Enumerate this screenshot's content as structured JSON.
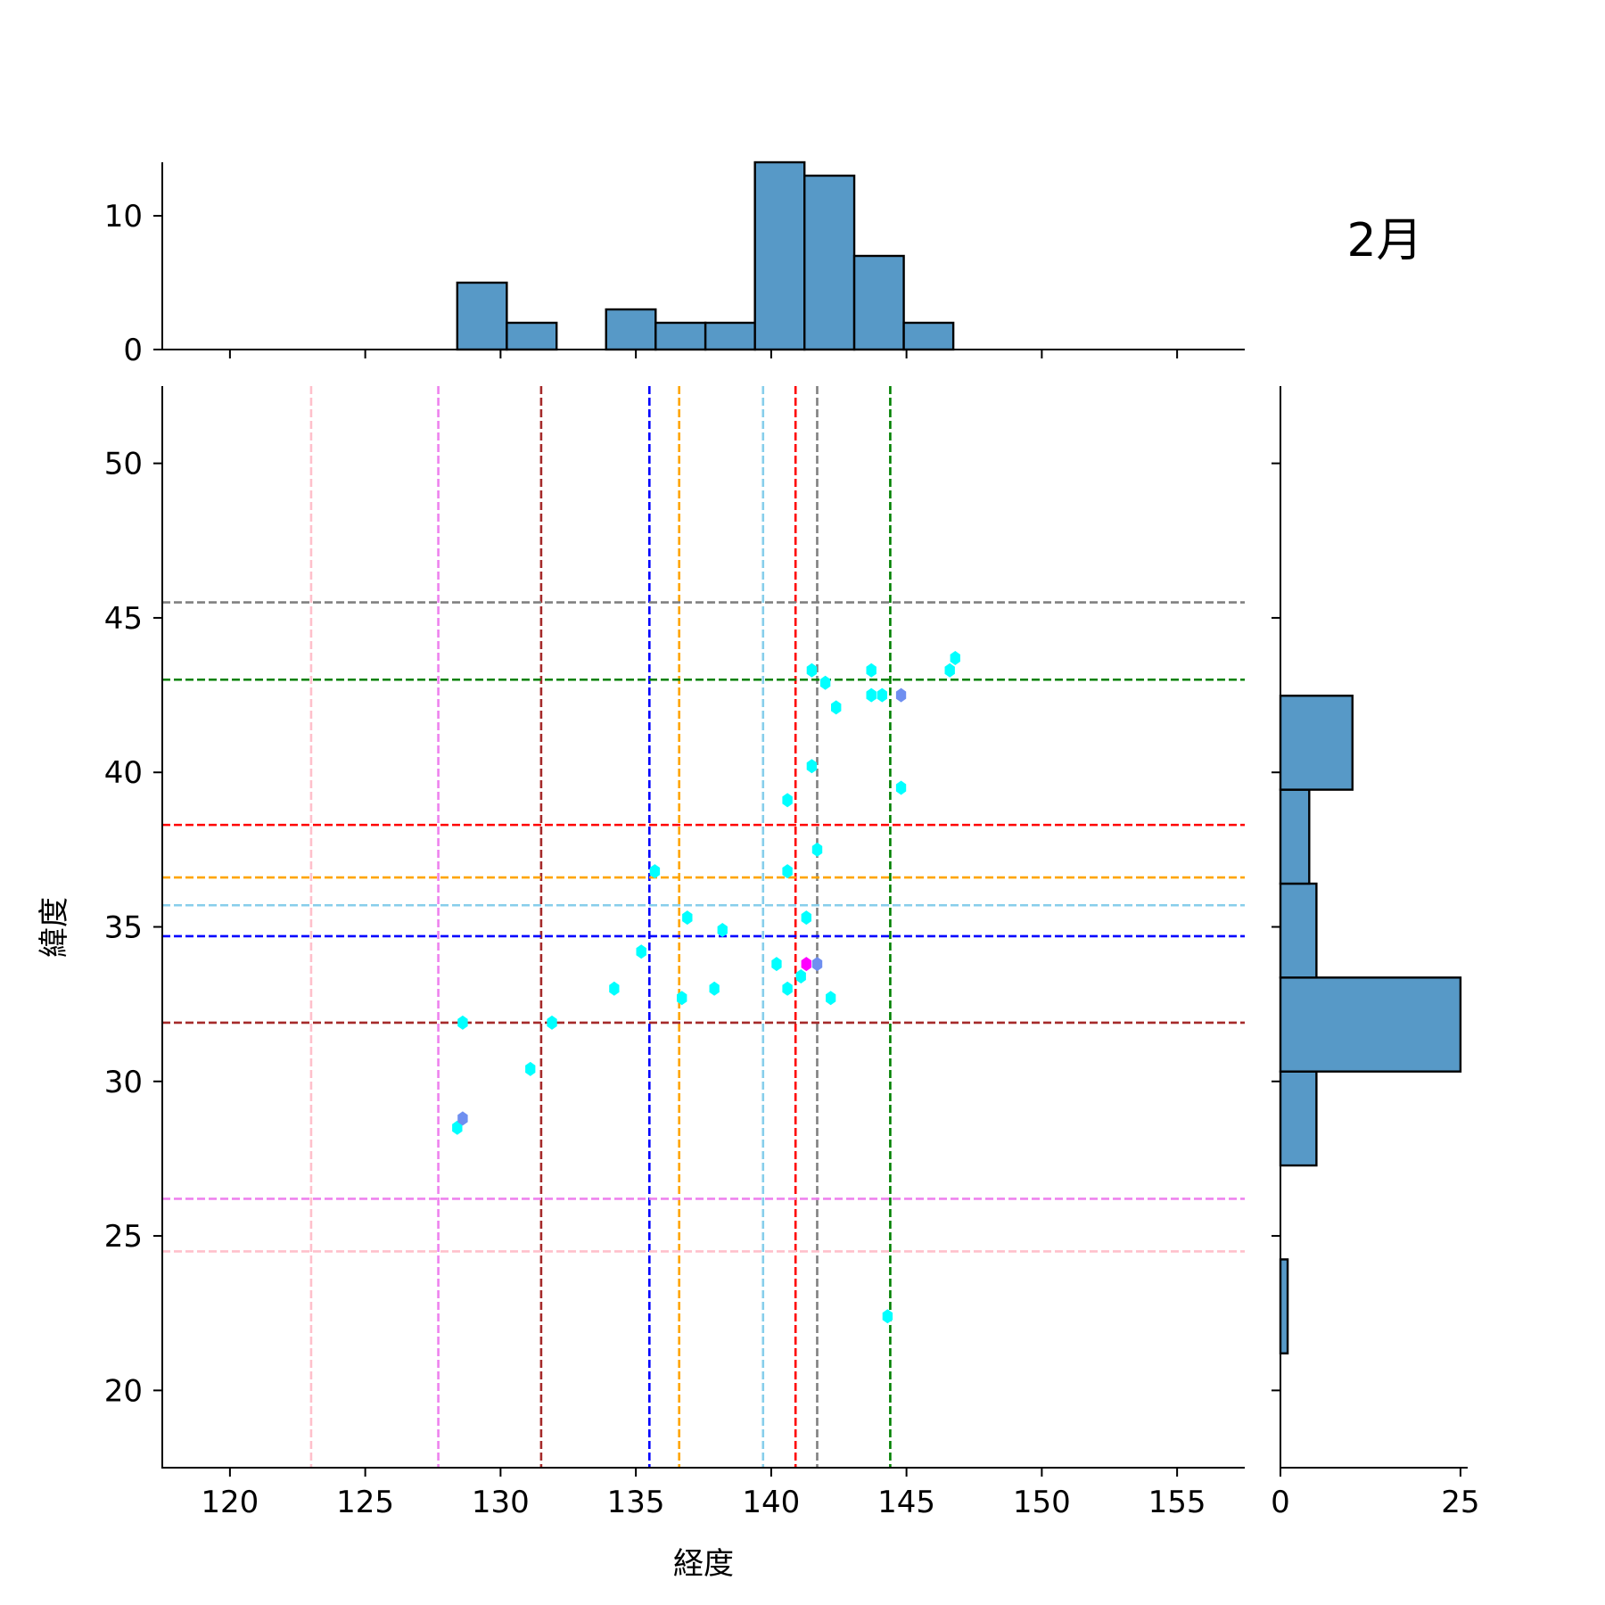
{
  "chart_data": {
    "type": "scatter",
    "title": "2月",
    "xlabel": "経度",
    "ylabel": "緯度",
    "xlim": [
      117.5,
      157.5
    ],
    "ylim": [
      17.5,
      52.5
    ],
    "xticks": [
      "120",
      "125",
      "130",
      "135",
      "140",
      "145",
      "150",
      "155"
    ],
    "yticks": [
      "20",
      "25",
      "30",
      "35",
      "40",
      "45",
      "50"
    ],
    "marker": "hexbin",
    "points": [
      {
        "x": 128.4,
        "y": 28.5,
        "color": "#00ffff"
      },
      {
        "x": 128.6,
        "y": 28.8,
        "color": "#6f8ff0"
      },
      {
        "x": 128.6,
        "y": 31.9,
        "color": "#00ffff"
      },
      {
        "x": 131.1,
        "y": 30.4,
        "color": "#00ffff"
      },
      {
        "x": 131.9,
        "y": 31.9,
        "color": "#00ffff"
      },
      {
        "x": 134.2,
        "y": 33.0,
        "color": "#00ffff"
      },
      {
        "x": 135.2,
        "y": 34.2,
        "color": "#00ffff"
      },
      {
        "x": 135.7,
        "y": 36.8,
        "color": "#00ffff"
      },
      {
        "x": 136.7,
        "y": 32.7,
        "color": "#00ffff"
      },
      {
        "x": 136.9,
        "y": 35.3,
        "color": "#00ffff"
      },
      {
        "x": 137.9,
        "y": 33.0,
        "color": "#00ffff"
      },
      {
        "x": 138.2,
        "y": 34.9,
        "color": "#00ffff"
      },
      {
        "x": 140.2,
        "y": 33.8,
        "color": "#00ffff"
      },
      {
        "x": 140.6,
        "y": 33.0,
        "color": "#00ffff"
      },
      {
        "x": 140.6,
        "y": 36.8,
        "color": "#00ffff"
      },
      {
        "x": 140.6,
        "y": 39.1,
        "color": "#00ffff"
      },
      {
        "x": 141.1,
        "y": 33.4,
        "color": "#00ffff"
      },
      {
        "x": 141.3,
        "y": 33.8,
        "color": "#ff00ff"
      },
      {
        "x": 141.3,
        "y": 35.3,
        "color": "#00ffff"
      },
      {
        "x": 141.5,
        "y": 40.2,
        "color": "#00ffff"
      },
      {
        "x": 141.5,
        "y": 43.3,
        "color": "#00ffff"
      },
      {
        "x": 141.7,
        "y": 33.8,
        "color": "#6f8ff0"
      },
      {
        "x": 141.7,
        "y": 37.5,
        "color": "#00ffff"
      },
      {
        "x": 142.0,
        "y": 42.9,
        "color": "#00ffff"
      },
      {
        "x": 142.2,
        "y": 32.7,
        "color": "#00ffff"
      },
      {
        "x": 142.4,
        "y": 42.1,
        "color": "#00ffff"
      },
      {
        "x": 143.7,
        "y": 42.5,
        "color": "#00ffff"
      },
      {
        "x": 143.7,
        "y": 43.3,
        "color": "#00ffff"
      },
      {
        "x": 144.1,
        "y": 42.5,
        "color": "#00ffff"
      },
      {
        "x": 144.3,
        "y": 22.4,
        "color": "#00ffff"
      },
      {
        "x": 144.8,
        "y": 39.5,
        "color": "#00ffff"
      },
      {
        "x": 144.8,
        "y": 42.5,
        "color": "#6f8ff0"
      },
      {
        "x": 146.6,
        "y": 43.3,
        "color": "#00ffff"
      },
      {
        "x": 146.8,
        "y": 43.7,
        "color": "#00ffff"
      }
    ],
    "vlines": [
      {
        "x": 123.0,
        "color": "#ffc0cb"
      },
      {
        "x": 127.7,
        "color": "#ee82ee"
      },
      {
        "x": 131.5,
        "color": "#a52a2a"
      },
      {
        "x": 135.5,
        "color": "#0000ff"
      },
      {
        "x": 136.6,
        "color": "#ffa500"
      },
      {
        "x": 139.7,
        "color": "#87ceeb"
      },
      {
        "x": 140.9,
        "color": "#ff0000"
      },
      {
        "x": 141.7,
        "color": "#808080"
      },
      {
        "x": 144.4,
        "color": "#008000"
      }
    ],
    "hlines": [
      {
        "y": 45.5,
        "color": "#808080"
      },
      {
        "y": 43.0,
        "color": "#008000"
      },
      {
        "y": 38.3,
        "color": "#ff0000"
      },
      {
        "y": 36.6,
        "color": "#ffa500"
      },
      {
        "y": 35.7,
        "color": "#87ceeb"
      },
      {
        "y": 34.7,
        "color": "#0000ff"
      },
      {
        "y": 31.9,
        "color": "#a52a2a"
      },
      {
        "y": 26.2,
        "color": "#ee82ee"
      },
      {
        "y": 24.5,
        "color": "#ffc0cb"
      }
    ],
    "top_hist": {
      "ylim": [
        0,
        14
      ],
      "yticks": [
        "0",
        "10"
      ],
      "bin_edges": [
        128.4,
        130.23,
        132.07,
        133.9,
        135.73,
        137.57,
        139.4,
        141.23,
        143.07,
        144.9,
        146.73
      ],
      "counts": [
        5,
        2,
        0,
        3,
        2,
        2,
        14,
        13,
        7,
        2
      ]
    },
    "right_hist": {
      "xlim": [
        0,
        26
      ],
      "xticks": [
        "0",
        "25"
      ],
      "bin_edges": [
        21.2,
        24.24,
        27.28,
        30.32,
        33.36,
        36.4,
        39.44,
        42.48
      ],
      "counts": [
        1,
        0,
        5,
        25,
        5,
        4,
        10
      ]
    },
    "colors": {
      "hist_fill": "#5799c7",
      "hist_edge": "#000000"
    }
  }
}
